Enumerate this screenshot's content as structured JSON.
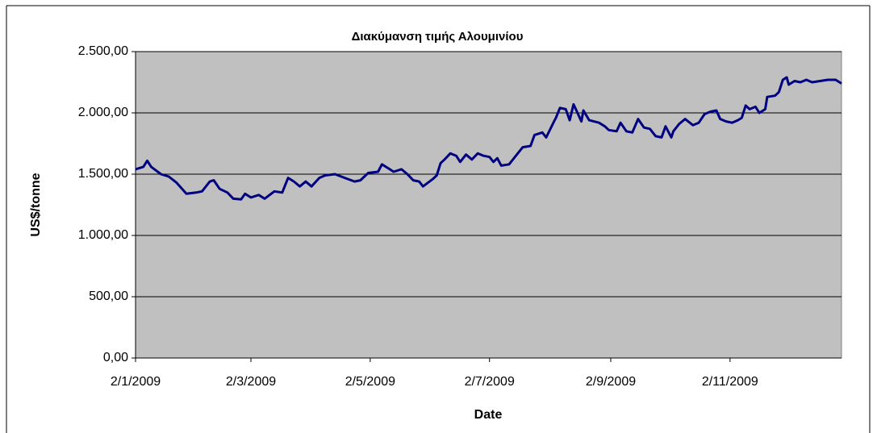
{
  "chart_data": {
    "type": "line",
    "title": "Διακύμανση τιμής Αλουμινίου",
    "xlabel": "Date",
    "ylabel": "US$/tonne",
    "color": "#000080",
    "grid": true,
    "ylim": [
      0,
      2500
    ],
    "yticks": [
      {
        "value": 0,
        "label": "0,00"
      },
      {
        "value": 500,
        "label": "500,00"
      },
      {
        "value": 1000,
        "label": "1.000,00"
      },
      {
        "value": 1500,
        "label": "1.500,00"
      },
      {
        "value": 2000,
        "label": "2.000,00"
      },
      {
        "value": 2500,
        "label": "2.500,00"
      }
    ],
    "xlim": [
      "2009-01-02",
      "2009-12-29"
    ],
    "xticks": [
      {
        "value": "2009-01-02",
        "label": "2/1/2009"
      },
      {
        "value": "2009-03-02",
        "label": "2/3/2009"
      },
      {
        "value": "2009-05-02",
        "label": "2/5/2009"
      },
      {
        "value": "2009-07-02",
        "label": "2/7/2009"
      },
      {
        "value": "2009-09-02",
        "label": "2/9/2009"
      },
      {
        "value": "2009-11-02",
        "label": "2/11/2009"
      }
    ],
    "x": [
      "2009-01-02",
      "2009-01-06",
      "2009-01-08",
      "2009-01-10",
      "2009-01-15",
      "2009-01-19",
      "2009-01-23",
      "2009-01-28",
      "2009-02-02",
      "2009-02-05",
      "2009-02-09",
      "2009-02-11",
      "2009-02-14",
      "2009-02-18",
      "2009-02-21",
      "2009-02-25",
      "2009-02-27",
      "2009-03-02",
      "2009-03-06",
      "2009-03-09",
      "2009-03-14",
      "2009-03-18",
      "2009-03-21",
      "2009-03-24",
      "2009-03-27",
      "2009-03-30",
      "2009-04-02",
      "2009-04-06",
      "2009-04-09",
      "2009-04-14",
      "2009-04-19",
      "2009-04-24",
      "2009-04-27",
      "2009-05-01",
      "2009-05-06",
      "2009-05-08",
      "2009-05-11",
      "2009-05-14",
      "2009-05-18",
      "2009-05-21",
      "2009-05-24",
      "2009-05-27",
      "2009-05-29",
      "2009-06-03",
      "2009-06-05",
      "2009-06-07",
      "2009-06-09",
      "2009-06-12",
      "2009-06-15",
      "2009-06-17",
      "2009-06-20",
      "2009-06-23",
      "2009-06-26",
      "2009-06-29",
      "2009-07-02",
      "2009-07-04",
      "2009-07-06",
      "2009-07-08",
      "2009-07-12",
      "2009-07-16",
      "2009-07-19",
      "2009-07-23",
      "2009-07-25",
      "2009-07-29",
      "2009-07-31",
      "2009-08-04",
      "2009-08-05",
      "2009-08-07",
      "2009-08-10",
      "2009-08-12",
      "2009-08-14",
      "2009-08-16",
      "2009-08-18",
      "2009-08-19",
      "2009-08-22",
      "2009-08-27",
      "2009-08-30",
      "2009-09-01",
      "2009-09-05",
      "2009-09-07",
      "2009-09-10",
      "2009-09-13",
      "2009-09-16",
      "2009-09-19",
      "2009-09-22",
      "2009-09-25",
      "2009-09-28",
      "2009-09-30",
      "2009-10-03",
      "2009-10-04",
      "2009-10-07",
      "2009-10-10",
      "2009-10-14",
      "2009-10-17",
      "2009-10-20",
      "2009-10-23",
      "2009-10-26",
      "2009-10-28",
      "2009-10-31",
      "2009-11-03",
      "2009-11-06",
      "2009-11-08",
      "2009-11-10",
      "2009-11-12",
      "2009-11-15",
      "2009-11-17",
      "2009-11-20",
      "2009-11-21",
      "2009-11-25",
      "2009-11-27",
      "2009-11-29",
      "2009-12-01",
      "2009-12-02",
      "2009-12-05",
      "2009-12-08",
      "2009-12-11",
      "2009-12-14",
      "2009-12-18",
      "2009-12-22",
      "2009-12-26",
      "2009-12-29"
    ],
    "values": [
      1540,
      1560,
      1610,
      1560,
      1500,
      1480,
      1430,
      1340,
      1350,
      1360,
      1440,
      1450,
      1380,
      1350,
      1300,
      1295,
      1340,
      1310,
      1330,
      1300,
      1360,
      1350,
      1470,
      1440,
      1400,
      1440,
      1400,
      1470,
      1490,
      1500,
      1470,
      1440,
      1450,
      1510,
      1520,
      1580,
      1550,
      1520,
      1540,
      1500,
      1450,
      1440,
      1400,
      1460,
      1490,
      1590,
      1620,
      1670,
      1650,
      1600,
      1660,
      1620,
      1670,
      1650,
      1640,
      1600,
      1630,
      1570,
      1580,
      1660,
      1720,
      1730,
      1820,
      1840,
      1800,
      1930,
      1960,
      2040,
      2030,
      1940,
      2070,
      2000,
      1930,
      2020,
      1940,
      1920,
      1890,
      1860,
      1850,
      1920,
      1850,
      1840,
      1950,
      1880,
      1870,
      1810,
      1800,
      1890,
      1800,
      1850,
      1910,
      1950,
      1900,
      1920,
      1990,
      2010,
      2020,
      1950,
      1930,
      1920,
      1940,
      1960,
      2060,
      2030,
      2050,
      2000,
      2030,
      2130,
      2140,
      2170,
      2270,
      2290,
      2230,
      2260,
      2250,
      2270,
      2250,
      2260,
      2270,
      2270,
      2240
    ]
  }
}
